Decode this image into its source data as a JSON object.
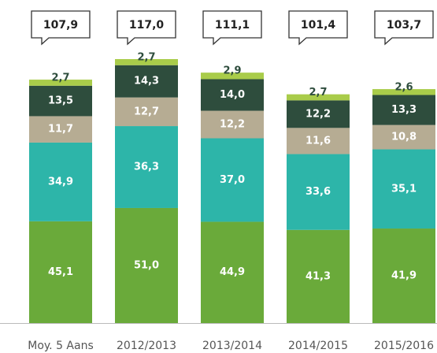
{
  "chart_data": {
    "type": "stacked-bar",
    "categories": [
      "Moy. 5 Aans",
      "2012/2013",
      "2013/2014",
      "2014/2015",
      "2015/2016"
    ],
    "series": [
      {
        "color": "#6aaa3a",
        "values": [
          45.1,
          51.0,
          44.9,
          41.3,
          41.9
        ],
        "value_labels": [
          "45,1",
          "51,0",
          "44,9",
          "41,3",
          "41,9"
        ]
      },
      {
        "color": "#2db5a9",
        "values": [
          34.9,
          36.3,
          37.0,
          33.6,
          35.1
        ],
        "value_labels": [
          "34,9",
          "36,3",
          "37,0",
          "33,6",
          "35,1"
        ]
      },
      {
        "color": "#b6ac93",
        "values": [
          11.7,
          12.7,
          12.2,
          11.6,
          10.8
        ],
        "value_labels": [
          "11,7",
          "12,7",
          "12,2",
          "11,6",
          "10,8"
        ]
      },
      {
        "color": "#2e4d3d",
        "values": [
          13.5,
          14.3,
          14.0,
          12.2,
          13.3
        ],
        "value_labels": [
          "13,5",
          "14,3",
          "14,0",
          "12,2",
          "13,3"
        ]
      },
      {
        "color": "#a9cc4a",
        "values": [
          2.7,
          2.7,
          2.9,
          2.7,
          2.6
        ],
        "value_labels": [
          "2,7",
          "2,7",
          "2,9",
          "2,7",
          "2,6"
        ]
      }
    ],
    "totals": [
      107.9,
      117.0,
      111.1,
      101.4,
      103.7
    ],
    "total_labels": [
      "107,9",
      "117,0",
      "111,1",
      "101,4",
      "103,7"
    ]
  }
}
